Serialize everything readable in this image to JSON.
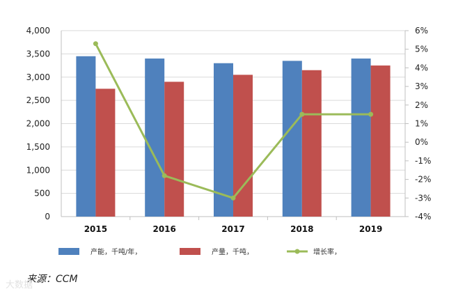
{
  "chart_data": {
    "type": "bar",
    "categories": [
      "2015",
      "2016",
      "2017",
      "2018",
      "2019"
    ],
    "series": [
      {
        "name": "产能，千吨/年，",
        "kind": "bar",
        "axis": "left",
        "color": "#4F81BD",
        "values": [
          3450,
          3400,
          3300,
          3350,
          3400
        ]
      },
      {
        "name": "产量，千吨，",
        "kind": "bar",
        "axis": "left",
        "color": "#C0504D",
        "values": [
          2750,
          2900,
          3050,
          3150,
          3250
        ]
      },
      {
        "name": "增长率，",
        "kind": "line",
        "axis": "right",
        "color": "#9BBB59",
        "values": [
          5.3,
          -1.8,
          -3.0,
          1.5,
          1.5
        ]
      }
    ],
    "left_axis": {
      "min": 0,
      "max": 4000,
      "step": 500,
      "ticks": [
        "0",
        "500",
        "1,000",
        "1,500",
        "2,000",
        "2,500",
        "3,000",
        "3,500",
        "4,000"
      ]
    },
    "right_axis": {
      "min": -4,
      "max": 6,
      "step": 1,
      "ticks": [
        "-4%",
        "-3%",
        "-2%",
        "-1%",
        "0%",
        "1%",
        "2%",
        "3%",
        "4%",
        "5%",
        "6%"
      ]
    },
    "grid": true,
    "legend_position": "bottom"
  },
  "source_label": "来源：CCM",
  "watermark": "大数据"
}
